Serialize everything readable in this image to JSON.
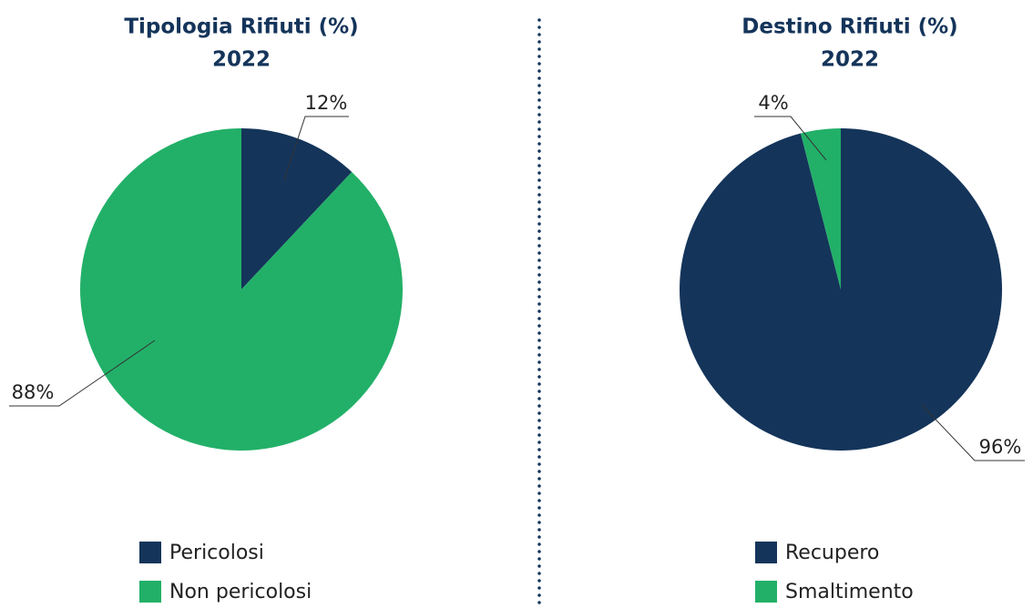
{
  "chart_data": [
    {
      "type": "pie",
      "title": "Tipologia Rifiuti (%)",
      "subtitle": "2022",
      "categories": [
        "Pericolosi",
        "Non pericolosi"
      ],
      "values": [
        12,
        88
      ],
      "value_labels": [
        "12%",
        "88%"
      ],
      "colors": [
        "#14345a",
        "#22b068"
      ],
      "legend": "bottom"
    },
    {
      "type": "pie",
      "title": "Destino Rifiuti (%)",
      "subtitle": "2022",
      "categories": [
        "Recupero",
        "Smaltimento"
      ],
      "values": [
        96,
        4
      ],
      "value_labels": [
        "96%",
        "4%"
      ],
      "colors": [
        "#14345a",
        "#22b068"
      ],
      "legend": "bottom"
    }
  ]
}
